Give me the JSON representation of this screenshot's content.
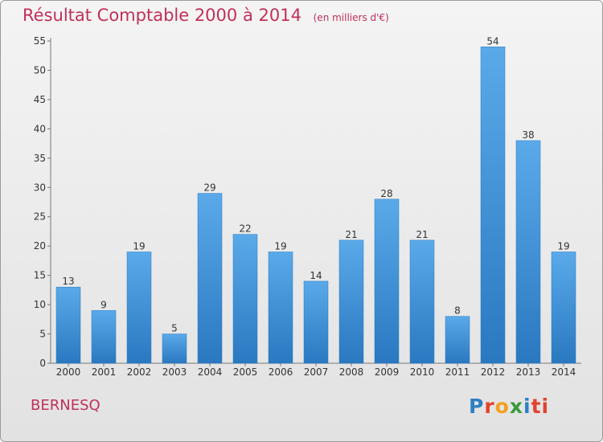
{
  "header": {
    "title": "Résultat Comptable 2000 à 2014",
    "subtitle": "(en milliers d'€)"
  },
  "place_name": "BERNESQ",
  "logo": {
    "text": "Proxiti",
    "letters": [
      "P",
      "r",
      "o",
      "x",
      "i",
      "ti"
    ]
  },
  "colors": {
    "bar": "#4a9de0",
    "bar_dark": "#2a78c0",
    "title": "#c0305a"
  },
  "chart_data": {
    "type": "bar",
    "title": "Résultat Comptable 2000 à 2014",
    "categories": [
      "2000",
      "2001",
      "2002",
      "2003",
      "2004",
      "2005",
      "2006",
      "2007",
      "2008",
      "2009",
      "2010",
      "2011",
      "2012",
      "2013",
      "2014"
    ],
    "values": [
      13,
      9,
      19,
      5,
      29,
      22,
      19,
      14,
      21,
      28,
      21,
      8,
      54,
      38,
      19
    ],
    "yticks": [
      0,
      5,
      10,
      15,
      20,
      25,
      30,
      35,
      40,
      45,
      50,
      55
    ],
    "ylim": [
      0,
      55
    ],
    "xlabel": "",
    "ylabel": "",
    "grid": false,
    "data_labels": true
  }
}
